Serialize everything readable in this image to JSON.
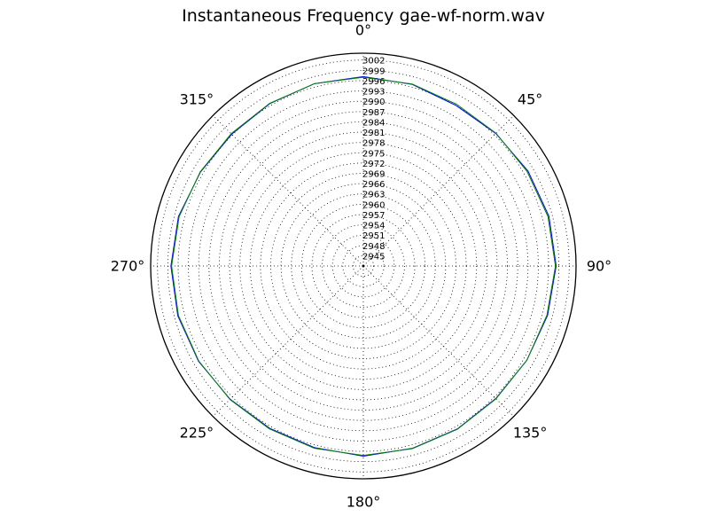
{
  "chart_data": {
    "type": "line",
    "subtype": "polar",
    "title": "Instantaneous Frequency  gae-wf-norm.wav",
    "angle_labels": [
      "0°",
      "45°",
      "90°",
      "135°",
      "180°",
      "225°",
      "270°",
      "315°"
    ],
    "radial_tick_labels": [
      "2945",
      "2948",
      "2951",
      "2954",
      "2957",
      "2960",
      "2963",
      "2966",
      "2969",
      "2972",
      "2975",
      "2978",
      "2981",
      "2984",
      "2987",
      "2990",
      "2993",
      "2996",
      "2999",
      "3002"
    ],
    "rlim": [
      2942,
      3004
    ],
    "theta_zero_location": "top",
    "theta_direction": "clockwise",
    "grid": true,
    "series": [
      {
        "color": "#0000ff",
        "angles_deg": [
          0,
          15,
          30,
          45,
          60,
          75,
          90,
          105,
          120,
          135,
          150,
          165,
          180,
          195,
          210,
          225,
          240,
          255,
          270,
          285,
          300,
          315,
          330,
          345,
          360
        ],
        "values": [
          2997.2,
          2996.8,
          2996.0,
          2996.6,
          2997.4,
          2998.0,
          2998.2,
          2997.6,
          2997.0,
          2996.6,
          2996.8,
          2997.0,
          2997.4,
          2996.8,
          2996.6,
          2996.9,
          2997.5,
          2998.0,
          2998.1,
          2997.8,
          2996.8,
          2996.3,
          2996.6,
          2997.0,
          2997.2
        ]
      },
      {
        "color": "#008000",
        "angles_deg": [
          0,
          15,
          30,
          45,
          60,
          75,
          90,
          105,
          120,
          135,
          150,
          165,
          180,
          195,
          210,
          225,
          240,
          255,
          270,
          285,
          300,
          315,
          330,
          345,
          360
        ],
        "values": [
          2997.0,
          2996.9,
          2996.4,
          2996.7,
          2997.1,
          2997.7,
          2998.0,
          2997.4,
          2997.0,
          2996.7,
          2996.9,
          2997.1,
          2997.2,
          2997.0,
          2996.8,
          2997.0,
          2997.4,
          2997.8,
          2997.9,
          2997.6,
          2996.9,
          2996.5,
          2996.7,
          2997.0,
          2997.0
        ]
      }
    ]
  }
}
